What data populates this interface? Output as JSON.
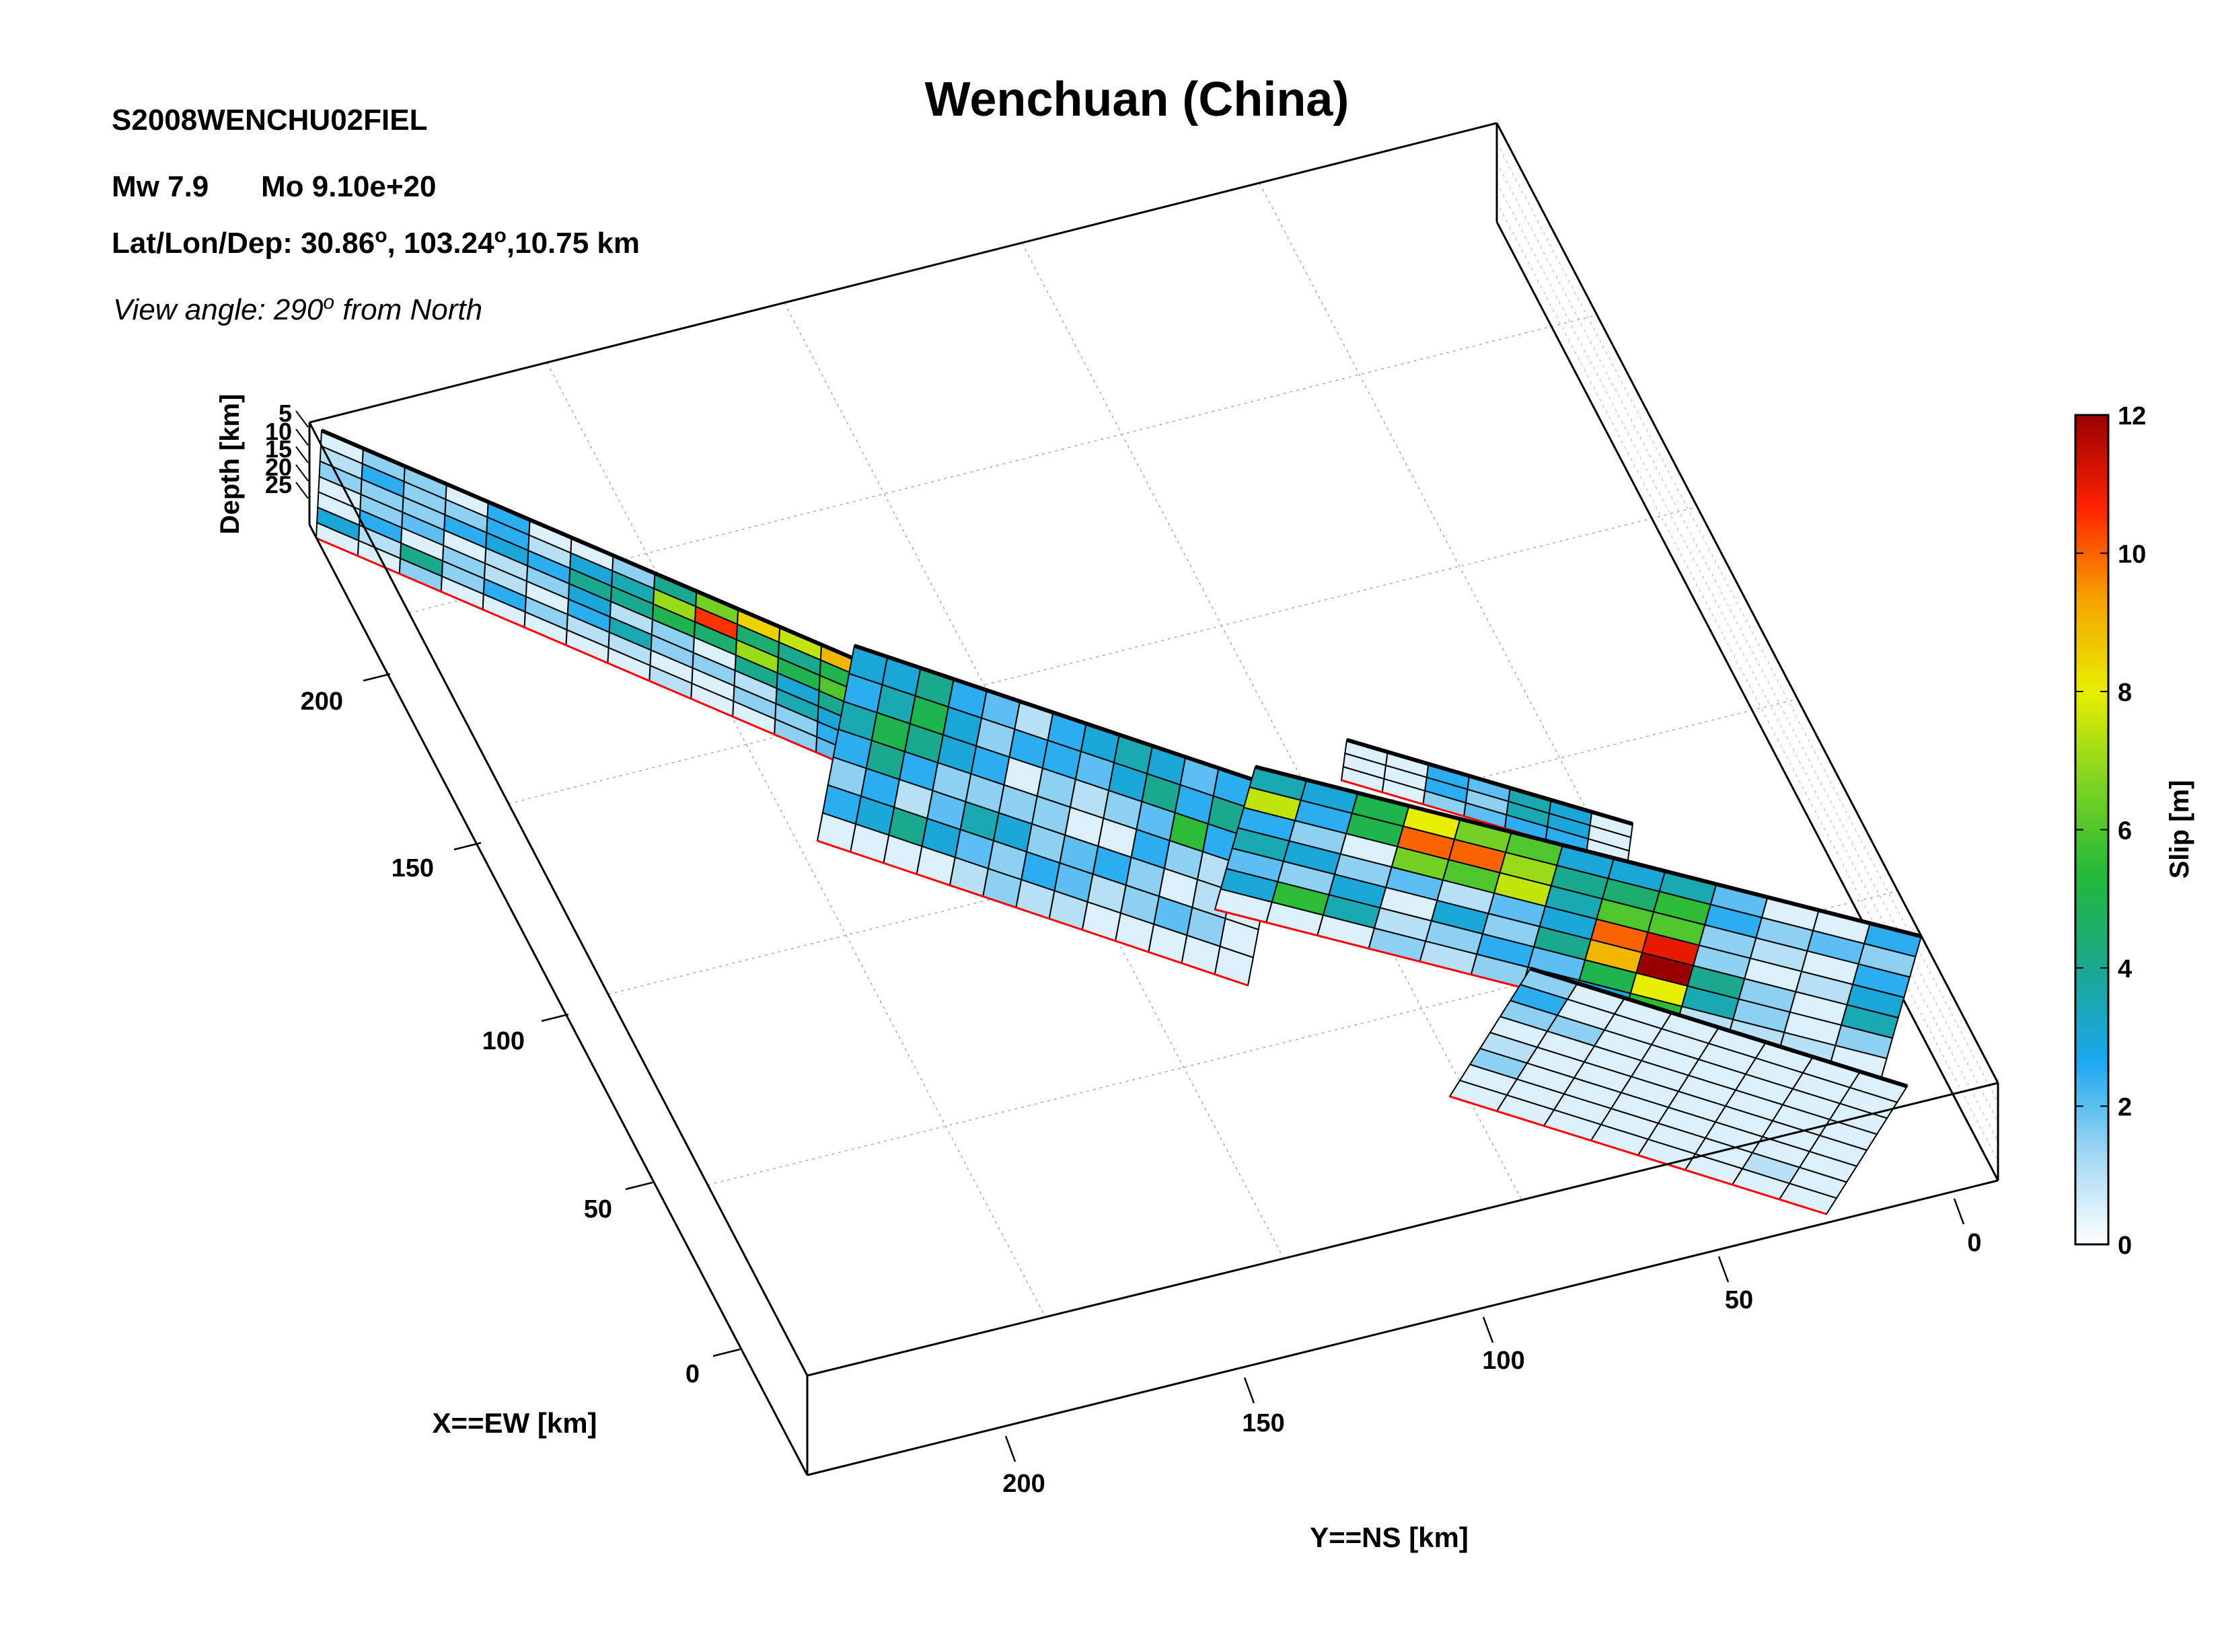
{
  "header": {
    "event_id": "S2008WENCHU02FIEL",
    "mw_label": "Mw 7.9",
    "mo_label": "Mo 9.10e+20",
    "latlondep_prefix": "Lat/Lon/Dep: 30.86",
    "latlondep_mid": ", 103.24",
    "latlondep_suffix": ",10.75 km",
    "degree_mark": "o",
    "view_prefix": "View angle: 290",
    "view_suffix": " from North"
  },
  "chart_data": {
    "type": "heatmap",
    "title": "Wenchuan (China)",
    "xlabel": "X==EW [km]",
    "ylabel": "Y==NS [km]",
    "zlabel": "Depth [km]",
    "x_ticks": [
      "0",
      "50",
      "100",
      "150",
      "200"
    ],
    "y_ticks": [
      "0",
      "50",
      "100",
      "150",
      "200"
    ],
    "z_ticks": [
      "5",
      "10",
      "15",
      "20",
      "25"
    ],
    "colorbar": {
      "label": "Slip [m]",
      "ticks": [
        "0",
        "2",
        "4",
        "6",
        "8",
        "10",
        "12"
      ],
      "range": [
        0,
        12
      ],
      "colors": [
        "#ffffff",
        "#9fd6f2",
        "#1aa7ef",
        "#1aa88f",
        "#22b83a",
        "#7ed321",
        "#e8ee00",
        "#f5a300",
        "#ff2200",
        "#9a0000"
      ]
    },
    "grid": true,
    "segments": [
      {
        "name": "segment-1",
        "slip": [
          [
            0.5,
            1.5,
            1.5,
            0.5,
            2.5,
            0.5,
            0.5,
            1.5,
            4,
            6.5,
            8.5,
            7.5,
            9
          ],
          [
            1,
            2.5,
            1.5,
            1.5,
            2.5,
            1,
            3,
            3.5,
            7,
            10.5,
            4.5,
            4,
            5
          ],
          [
            1.5,
            1.5,
            1.5,
            2.5,
            3,
            2.5,
            4,
            4,
            5,
            4.5,
            7,
            5,
            6
          ],
          [
            0.5,
            1.5,
            2,
            0.5,
            1,
            1.5,
            3,
            1,
            1.5,
            0.5,
            4,
            3,
            4
          ],
          [
            0.5,
            2.5,
            0.5,
            1.5,
            1,
            0.5,
            2.5,
            3.5,
            1.5,
            1.5,
            1,
            3.5,
            3
          ],
          [
            3,
            1,
            4,
            1.5,
            2.5,
            1.5,
            1,
            1,
            0.5,
            0.5,
            1.5,
            1.5,
            2.5
          ],
          [
            0.5,
            0.5,
            1.5,
            0.5,
            0.5,
            0.5,
            0.5,
            0.5,
            1,
            0.5,
            0.5,
            1.5,
            2
          ]
        ]
      },
      {
        "name": "segment-2",
        "slip": [
          [
            3,
            3,
            4,
            2.5,
            2,
            1,
            2.5,
            3,
            3.5,
            3,
            2,
            2.5,
            3.5
          ],
          [
            2.5,
            3.5,
            5,
            3,
            1.5,
            2.5,
            2.5,
            2,
            3,
            4,
            2.5,
            4,
            1.5
          ],
          [
            3.5,
            5,
            4,
            3,
            2.5,
            0.5,
            1.5,
            1,
            1.5,
            2,
            5.5,
            2.5,
            1.5
          ],
          [
            2.5,
            4,
            2.5,
            1.5,
            1.5,
            1.5,
            1.5,
            0.5,
            0.5,
            2.5,
            1.5,
            1,
            1
          ],
          [
            1.5,
            2.5,
            1,
            2,
            3.5,
            3,
            1.5,
            2,
            2.5,
            1.5,
            0.5,
            1,
            0.5
          ],
          [
            2.5,
            3,
            4,
            3,
            2,
            1.5,
            2.5,
            2,
            1,
            1.5,
            2,
            1.5,
            0.5
          ],
          [
            0.5,
            0.5,
            0.5,
            0.5,
            1,
            1.5,
            1,
            1,
            0.5,
            0.5,
            0.5,
            0.5,
            0.5
          ]
        ]
      },
      {
        "name": "segment-3",
        "slip": [
          [
            0.5,
            0.5,
            2.5,
            2,
            3.5,
            3,
            0.5
          ],
          [
            0.5,
            0.5,
            2.5,
            1.5,
            3.5,
            3,
            0.5
          ],
          [
            0.5,
            0.5,
            1.5,
            2,
            2.5,
            2.5,
            0.5
          ]
        ]
      },
      {
        "name": "segment-4",
        "slip": [
          [
            3.5,
            3,
            5,
            8,
            6.5,
            6,
            3,
            3,
            3.5,
            2,
            0.5,
            0.5,
            2.5
          ],
          [
            7.5,
            2.5,
            5,
            10,
            10,
            7,
            4,
            4.5,
            5.5,
            2.5,
            1.5,
            2,
            1.5
          ],
          [
            2.5,
            1.5,
            0.5,
            6.5,
            6,
            7.5,
            3.5,
            6,
            6,
            1.5,
            1,
            0.5,
            2.5
          ],
          [
            3.5,
            3,
            1.5,
            2,
            1,
            2,
            3,
            10,
            11,
            1.5,
            0.5,
            1,
            3
          ],
          [
            2,
            1.5,
            3,
            0.5,
            3,
            1.5,
            4,
            9,
            12,
            4,
            1.5,
            0.5,
            3.5
          ],
          [
            3,
            5.5,
            3.5,
            1,
            1.5,
            2.5,
            2,
            5,
            8,
            3.5,
            1.5,
            0.5,
            1.5
          ],
          [
            0.5,
            0.5,
            0.5,
            1.5,
            1,
            1.5,
            1.5,
            3,
            5.5,
            1,
            1,
            1,
            0.5
          ]
        ]
      },
      {
        "name": "segment-5",
        "slip": [
          [
            1.5,
            0.5,
            0.5,
            0.5,
            0.5,
            0.5,
            0.5,
            0.5
          ],
          [
            2.5,
            0.5,
            0.5,
            0.5,
            0.5,
            0.5,
            0.5,
            0.5
          ],
          [
            1.5,
            1.5,
            0.5,
            0.5,
            0.5,
            0.5,
            0.5,
            0.5
          ],
          [
            0.5,
            0.5,
            0.5,
            0.5,
            0.5,
            0.5,
            0.5,
            0.5
          ],
          [
            1,
            0.5,
            0.5,
            0.5,
            0.5,
            0.5,
            0.5,
            0.5
          ],
          [
            1.5,
            0.5,
            0.5,
            0.5,
            0.5,
            0.5,
            0.5,
            0.5
          ],
          [
            0.5,
            0.5,
            0.5,
            0.5,
            0.5,
            0.5,
            1,
            0.5
          ],
          [
            0.5,
            0.5,
            0.5,
            0.5,
            0.5,
            0.5,
            0.5,
            0.5
          ]
        ]
      }
    ]
  }
}
